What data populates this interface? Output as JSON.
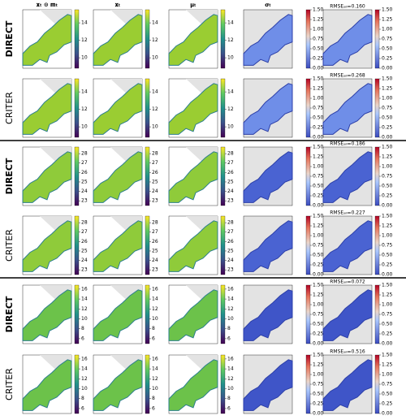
{
  "columns": [
    "𝐱ₜ ⊙ 𝐦ₜ",
    "𝐱ₜ",
    "𝛍ₜ",
    "𝛔ₜ"
  ],
  "sigma_lim": [
    0,
    1.5
  ],
  "sigma_ticks": [
    {
      "value": 0,
      "label": "0.00"
    },
    {
      "value": 0.25,
      "label": "0.25"
    },
    {
      "value": 0.5,
      "label": "0.50"
    },
    {
      "value": 0.75,
      "label": "0.75"
    },
    {
      "value": 1,
      "label": "1.00"
    },
    {
      "value": 1.25,
      "label": "1.25"
    },
    {
      "value": 1.5,
      "label": "1.50"
    }
  ],
  "groups": [
    {
      "cbar_lim": [
        8.8,
        15.5
      ],
      "ticks": [
        10,
        12,
        14
      ],
      "rows": [
        {
          "label": "DIRECT",
          "rmse": "RMSEₐₗₗ=0.160"
        },
        {
          "label": "CRITER",
          "rmse": "RMSEₐₗₗ=0.268"
        }
      ]
    },
    {
      "cbar_lim": [
        22.5,
        28.7
      ],
      "ticks": [
        23,
        24,
        25,
        26,
        27,
        28
      ],
      "rows": [
        {
          "label": "DIRECT",
          "rmse": "RMSEₐₗₗ=0.186"
        },
        {
          "label": "CRITER",
          "rmse": "RMSEₐₗₗ=0.227"
        }
      ]
    },
    {
      "cbar_lim": [
        5,
        16.8
      ],
      "ticks": [
        6,
        8,
        10,
        12,
        14,
        16
      ],
      "rows": [
        {
          "label": "DIRECT",
          "rmse": "RMSEₐₗₗ=0.072"
        },
        {
          "label": "CRITER",
          "rmse": "RMSEₐₗₗ=0.516"
        }
      ]
    }
  ]
}
